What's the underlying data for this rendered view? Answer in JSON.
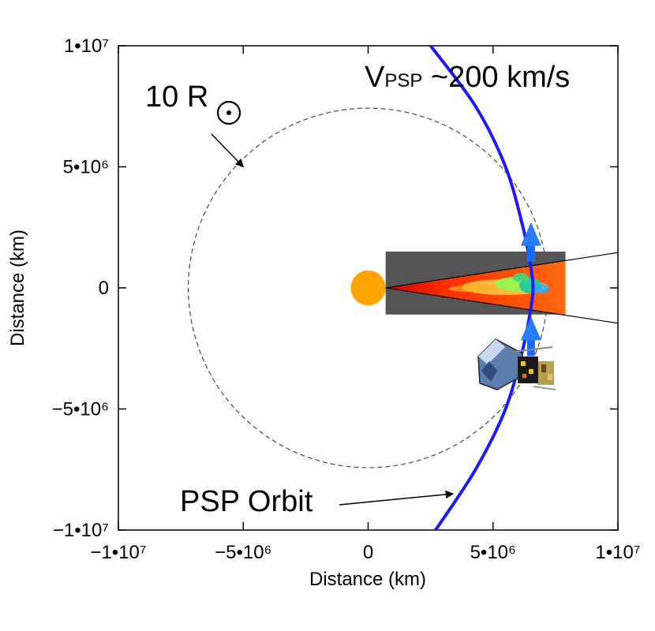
{
  "chart_data": {
    "type": "line",
    "xlabel": "Distance (km)",
    "ylabel": "Distance (km)",
    "xlim": [
      -10000000,
      10000000
    ],
    "ylim": [
      -10000000,
      10000000
    ],
    "xticks": [
      {
        "value": -10000000,
        "label": "−1•10⁷"
      },
      {
        "value": -5000000,
        "label": "−5•10⁶"
      },
      {
        "value": 0,
        "label": "0"
      },
      {
        "value": 5000000,
        "label": "5•10⁶"
      },
      {
        "value": 10000000,
        "label": "1•10⁷"
      }
    ],
    "yticks": [
      {
        "value": -10000000,
        "label": "−1•10⁷"
      },
      {
        "value": -5000000,
        "label": "−5•10⁶"
      },
      {
        "value": 0,
        "label": "0"
      },
      {
        "value": 5000000,
        "label": "5•10⁶"
      },
      {
        "value": 10000000,
        "label": "1•10⁷"
      }
    ],
    "series": [
      {
        "name": "PSP Orbit",
        "color": "#1a1aff",
        "x": [
          2700000,
          4300000,
          5500000,
          6200000,
          6520000,
          6600000,
          6520000,
          6200000,
          5500000,
          4300000,
          2500000
        ],
        "y": [
          -10000000,
          -7500000,
          -5000000,
          -2500000,
          -800000,
          0,
          800000,
          2500000,
          5000000,
          7500000,
          10000000
        ]
      },
      {
        "name": "10 R_sun circle",
        "style": "dashed",
        "color": "#555555",
        "center": [
          0,
          0
        ],
        "radius": 7200000
      }
    ],
    "sun": {
      "center": [
        0,
        0
      ],
      "radius": 700000,
      "color": "#ffa500"
    },
    "simulation_box": {
      "x_range": [
        700000,
        7900000
      ],
      "y_range": [
        -1100000,
        1500000
      ],
      "color": "#555555"
    },
    "cone": {
      "apex": [
        700000,
        0
      ],
      "upper_slope": 0.1567,
      "lower_slope": -0.1567,
      "fill": "#ff5a14"
    },
    "velocity_arrows": [
      {
        "x": 6520000,
        "y": -1900000,
        "direction": "up"
      },
      {
        "x": 6520000,
        "y": 2000000,
        "direction": "up"
      }
    ],
    "annotations": [
      {
        "id": "rsun",
        "text_main": "10 R",
        "symbol": "⊙",
        "points_to": [
          -5000000,
          5000000
        ]
      },
      {
        "id": "vpsp",
        "text_v": "V",
        "text_sub": "PSP",
        "text_rest": " ~200 km/s"
      },
      {
        "id": "orbit",
        "text": "PSP Orbit",
        "points_to": [
          3400000,
          -8500000
        ]
      }
    ]
  }
}
